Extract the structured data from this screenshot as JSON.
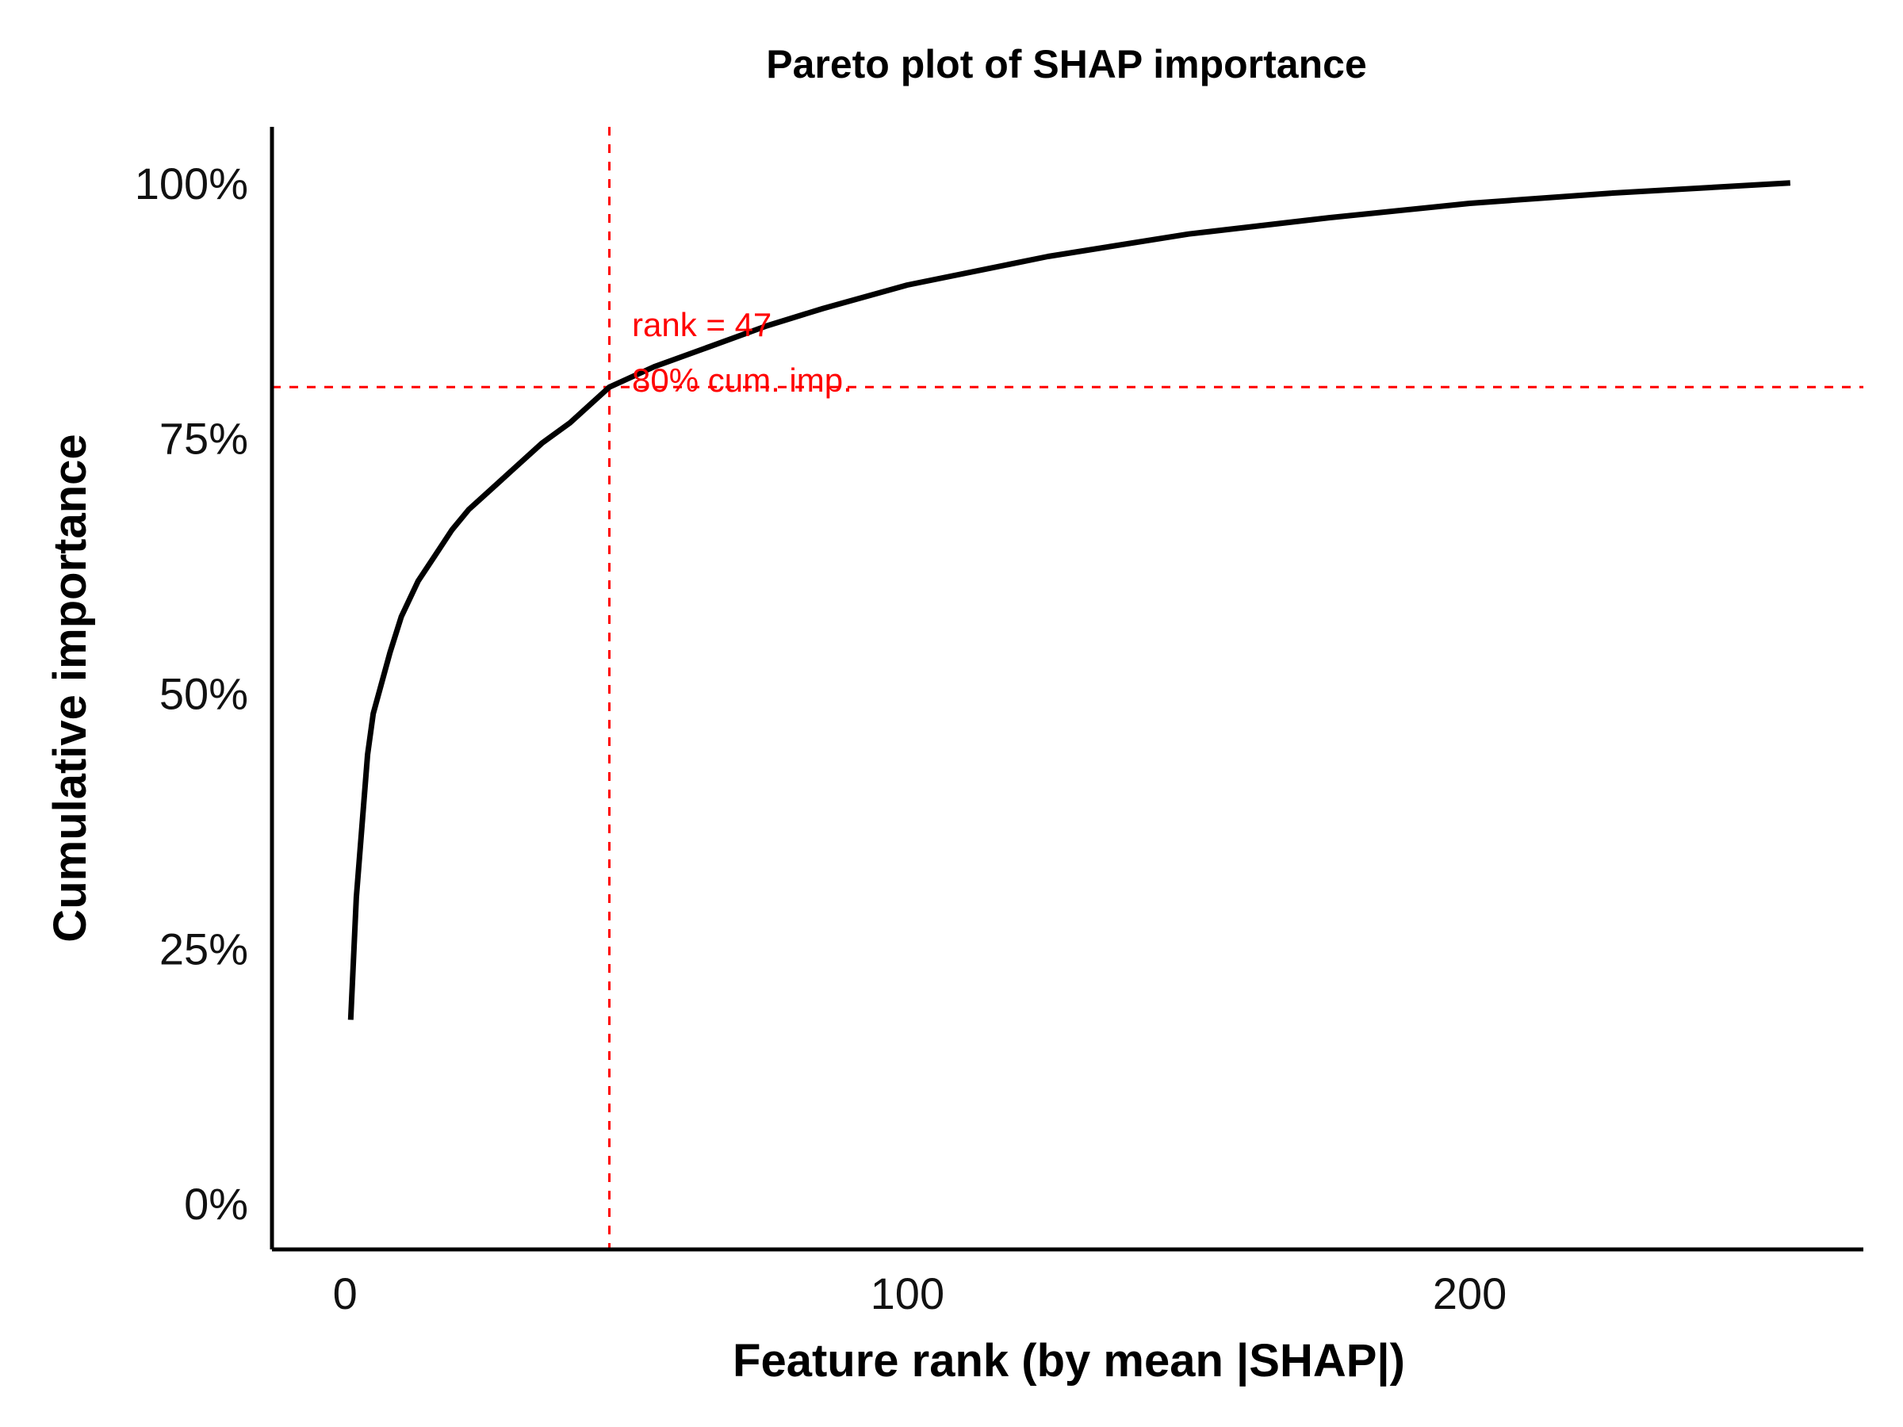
{
  "chart_data": {
    "type": "line",
    "title": "Pareto plot of SHAP importance",
    "xlabel": "Feature rank (by mean |SHAP|)",
    "ylabel": "Cumulative importance",
    "xlim": [
      -13,
      270
    ],
    "ylim": [
      -0.045,
      1.055
    ],
    "x_ticks": [
      {
        "value": 0,
        "label": "0"
      },
      {
        "value": 100,
        "label": "100"
      },
      {
        "value": 200,
        "label": "200"
      }
    ],
    "y_ticks": [
      {
        "value": 0,
        "label": "0%"
      },
      {
        "value": 0.25,
        "label": "25%"
      },
      {
        "value": 0.5,
        "label": "50%"
      },
      {
        "value": 0.75,
        "label": "75%"
      },
      {
        "value": 1.0,
        "label": "100%"
      }
    ],
    "grid": false,
    "line_color": "#000000",
    "series": [
      {
        "points": [
          [
            1,
            0.18
          ],
          [
            2,
            0.3
          ],
          [
            3,
            0.37
          ],
          [
            4,
            0.44
          ],
          [
            5,
            0.48
          ],
          [
            8,
            0.54
          ],
          [
            10,
            0.575
          ],
          [
            13,
            0.61
          ],
          [
            16,
            0.635
          ],
          [
            19,
            0.66
          ],
          [
            22,
            0.68
          ],
          [
            26,
            0.7
          ],
          [
            30,
            0.72
          ],
          [
            35,
            0.745
          ],
          [
            40,
            0.765
          ],
          [
            47,
            0.8
          ],
          [
            55,
            0.82
          ],
          [
            65,
            0.84
          ],
          [
            75,
            0.86
          ],
          [
            85,
            0.877
          ],
          [
            100,
            0.9
          ],
          [
            125,
            0.928
          ],
          [
            150,
            0.95
          ],
          [
            175,
            0.966
          ],
          [
            200,
            0.98
          ],
          [
            225,
            0.99
          ],
          [
            257,
            1.0
          ]
        ]
      }
    ],
    "reference_lines": {
      "color": "#ff0000",
      "vertical_x": 47,
      "horizontal_y": 0.8
    },
    "annotations": [
      "rank = 47",
      "80% cum. imp."
    ]
  }
}
